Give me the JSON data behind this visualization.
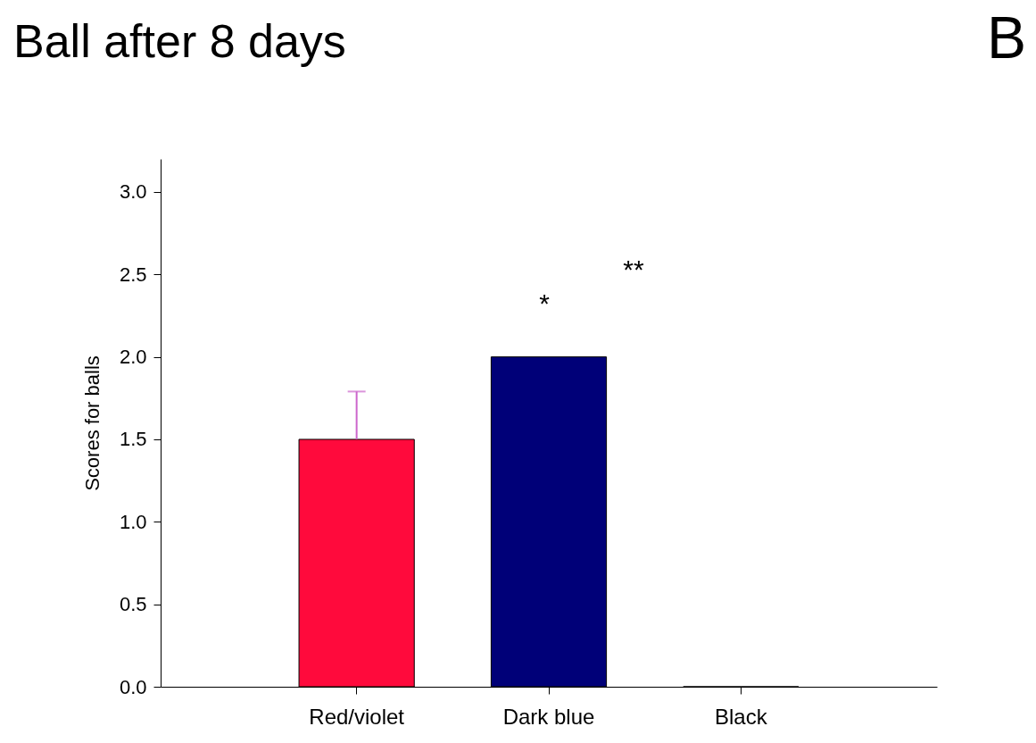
{
  "chart_data": {
    "type": "bar",
    "title": "Ball after 8 days",
    "ylabel": "Scores for balls",
    "categories": [
      "Red/violet",
      "Dark blue",
      "Black"
    ],
    "values": [
      1.5,
      2.0,
      0
    ],
    "colors": [
      "#ff0a3c",
      "#000078",
      "#000000"
    ],
    "errors": [
      [
        1.5,
        1.79
      ],
      null,
      null
    ],
    "ylim": [
      0,
      3.2
    ],
    "yticks": [
      {
        "value": 0,
        "label": "0.0"
      },
      {
        "value": 0.5,
        "label": "0.5"
      },
      {
        "value": 1,
        "label": "1.0"
      },
      {
        "value": 1.5,
        "label": "1.5"
      },
      {
        "value": 2,
        "label": "2.0"
      },
      {
        "value": 2.5,
        "label": "2.5"
      },
      {
        "value": 3,
        "label": "3.0"
      }
    ],
    "grid": false,
    "annotations": [
      "*",
      "**",
      "B"
    ]
  }
}
